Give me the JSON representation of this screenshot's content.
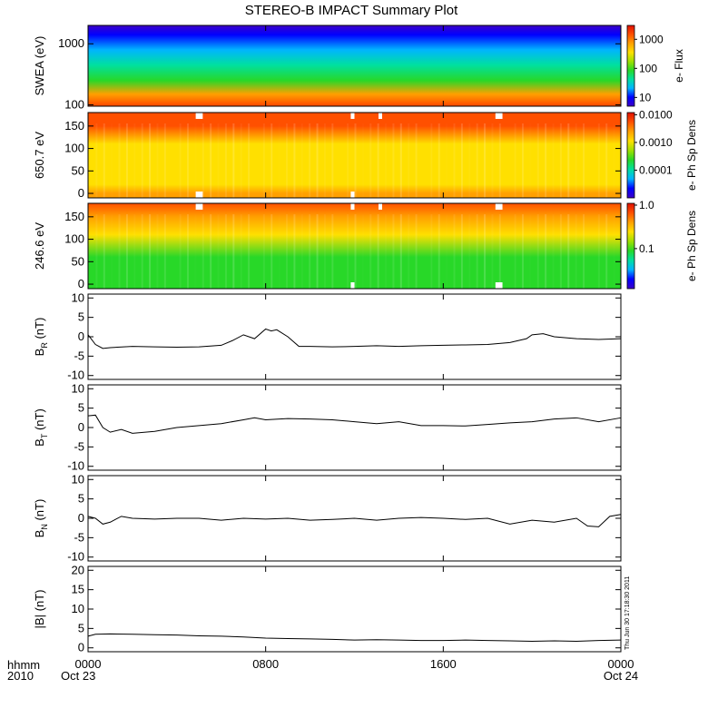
{
  "title": "STEREO-B IMPACT Summary Plot",
  "footer": {
    "unit_label": "hhmm",
    "year": "2010",
    "start_date": "Oct 23",
    "end_date": "Oct 24"
  },
  "timestamp": "Thu Jun 30 17:18:30 2011",
  "colors": {
    "trace": "#000000",
    "gap": "#ffffff",
    "spectrum": [
      "#3c00c8",
      "#0000ff",
      "#00b4ff",
      "#00e0a0",
      "#28d828",
      "#a0e000",
      "#ffe000",
      "#ffa000",
      "#ff5000",
      "#e01000"
    ]
  },
  "chart_data": [
    {
      "type": "heatmap",
      "name": "swea_flux",
      "ylabel": "SWEA (eV)",
      "yscale": "log",
      "ylim": [
        95,
        2000
      ],
      "yticks": [
        {
          "value": 100,
          "label": "100"
        },
        {
          "value": 1000,
          "label": "1000"
        }
      ],
      "colorbar": {
        "title": "e- Flux",
        "scale": "log",
        "range": [
          5,
          3000
        ],
        "ticks": [
          {
            "value": 10,
            "label": "10"
          },
          {
            "value": 100,
            "label": "100"
          },
          {
            "value": 1000,
            "label": "1000"
          }
        ]
      },
      "energy_profile": [
        {
          "energy": 100,
          "flux": 2000
        },
        {
          "energy": 150,
          "flux": 600
        },
        {
          "energy": 250,
          "flux": 120
        },
        {
          "energy": 450,
          "flux": 45
        },
        {
          "energy": 800,
          "flux": 20
        },
        {
          "energy": 1400,
          "flux": 8
        },
        {
          "energy": 2000,
          "flux": 5
        }
      ]
    },
    {
      "type": "heatmap",
      "name": "pad_650",
      "ylabel": "650.7 eV",
      "ylim": [
        -10,
        180
      ],
      "yticks": [
        0,
        50,
        100,
        150
      ],
      "colorbar": {
        "title": "e- Ph Sp Dens",
        "scale": "log",
        "range": [
          1e-05,
          0.012
        ],
        "ticks": [
          {
            "value": 0.0001,
            "label": "0.0001"
          },
          {
            "value": 0.001,
            "label": "0.0010"
          },
          {
            "value": 0.01,
            "label": "0.0100"
          }
        ]
      },
      "pitch_angle_profile": [
        {
          "pitch_angle": 180,
          "density": 0.008
        },
        {
          "pitch_angle": 150,
          "density": 0.0045
        },
        {
          "pitch_angle": 110,
          "density": 0.0015
        },
        {
          "pitch_angle": 60,
          "density": 0.0011
        },
        {
          "pitch_angle": 20,
          "density": 0.0015
        },
        {
          "pitch_angle": 0,
          "density": 0.002
        }
      ],
      "data_gaps": [
        {
          "start": "0451",
          "end": "0510",
          "at": "top"
        },
        {
          "start": "1150",
          "end": "1200",
          "at": "top"
        },
        {
          "start": "1305",
          "end": "1312",
          "at": "top"
        },
        {
          "start": "1821",
          "end": "1840",
          "at": "top"
        },
        {
          "start": "0451",
          "end": "0510",
          "at": "bottom"
        },
        {
          "start": "1150",
          "end": "1200",
          "at": "bottom"
        }
      ]
    },
    {
      "type": "heatmap",
      "name": "pad_246",
      "ylabel": "246.6 eV",
      "ylim": [
        -10,
        180
      ],
      "yticks": [
        0,
        50,
        100,
        150
      ],
      "colorbar": {
        "title": "e- Ph Sp Dens",
        "scale": "log",
        "range": [
          0.012,
          1.1
        ],
        "ticks": [
          {
            "value": 0.1,
            "label": "0.1"
          },
          {
            "value": 1.0,
            "label": "1.0"
          }
        ]
      },
      "pitch_angle_profile": [
        {
          "pitch_angle": 180,
          "density": 0.7
        },
        {
          "pitch_angle": 150,
          "density": 0.4
        },
        {
          "pitch_angle": 110,
          "density": 0.2
        },
        {
          "pitch_angle": 60,
          "density": 0.1
        },
        {
          "pitch_angle": 20,
          "density": 0.08
        },
        {
          "pitch_angle": 0,
          "density": 0.09
        }
      ],
      "data_gaps": [
        {
          "start": "0451",
          "end": "0510",
          "at": "top"
        },
        {
          "start": "1150",
          "end": "1200",
          "at": "top"
        },
        {
          "start": "1305",
          "end": "1312",
          "at": "top"
        },
        {
          "start": "1821",
          "end": "1840",
          "at": "top"
        },
        {
          "start": "1150",
          "end": "1200",
          "at": "bottom"
        },
        {
          "start": "1821",
          "end": "1840",
          "at": "bottom"
        }
      ]
    },
    {
      "type": "line",
      "name": "br",
      "ylabel_main": "B",
      "ylabel_sub": "R",
      "ylabel_unit": "(nT)",
      "ylim": [
        -11,
        11
      ],
      "yticks": [
        -10,
        -5,
        0,
        5,
        10
      ],
      "x": [
        "0000",
        "0020",
        "0040",
        "0100",
        "0200",
        "0300",
        "0400",
        "0500",
        "0600",
        "0630",
        "0700",
        "0730",
        "0800",
        "0815",
        "0830",
        "0900",
        "0930",
        "1000",
        "1100",
        "1200",
        "1300",
        "1400",
        "1500",
        "1600",
        "1700",
        "1800",
        "1900",
        "1945",
        "2000",
        "2030",
        "2100",
        "2200",
        "2300",
        "2400"
      ],
      "values": [
        0.5,
        -2,
        -3,
        -2.8,
        -2.5,
        -2.6,
        -2.7,
        -2.6,
        -2.2,
        -1,
        0.5,
        -0.5,
        2,
        1.5,
        1.8,
        0,
        -2.5,
        -2.5,
        -2.6,
        -2.5,
        -2.3,
        -2.5,
        -2.3,
        -2.2,
        -2.1,
        -2.0,
        -1.5,
        -0.5,
        0.5,
        0.8,
        0,
        -0.5,
        -0.7,
        -0.5
      ]
    },
    {
      "type": "line",
      "name": "bt",
      "ylabel_main": "B",
      "ylabel_sub": "T",
      "ylabel_unit": "(nT)",
      "ylim": [
        -11,
        11
      ],
      "yticks": [
        -10,
        -5,
        0,
        5,
        10
      ],
      "x": [
        "0000",
        "0020",
        "0040",
        "0100",
        "0130",
        "0200",
        "0300",
        "0400",
        "0500",
        "0600",
        "0700",
        "0730",
        "0800",
        "0900",
        "1000",
        "1100",
        "1200",
        "1300",
        "1400",
        "1500",
        "1600",
        "1700",
        "1800",
        "1900",
        "2000",
        "2100",
        "2200",
        "2300",
        "2400"
      ],
      "values": [
        3,
        3.2,
        0,
        -1.2,
        -0.5,
        -1.5,
        -1,
        0,
        0.5,
        1,
        2,
        2.5,
        2,
        2.3,
        2.2,
        2,
        1.5,
        1,
        1.5,
        0.5,
        0.5,
        0.4,
        0.8,
        1.2,
        1.5,
        2.2,
        2.5,
        1.5,
        2.5
      ]
    },
    {
      "type": "line",
      "name": "bn",
      "ylabel_main": "B",
      "ylabel_sub": "N",
      "ylabel_unit": "(nT)",
      "ylim": [
        -11,
        11
      ],
      "yticks": [
        -10,
        -5,
        0,
        5,
        10
      ],
      "x": [
        "0000",
        "0020",
        "0040",
        "0100",
        "0130",
        "0200",
        "0300",
        "0400",
        "0500",
        "0600",
        "0700",
        "0800",
        "0900",
        "1000",
        "1100",
        "1200",
        "1300",
        "1400",
        "1500",
        "1600",
        "1700",
        "1800",
        "1900",
        "2000",
        "2100",
        "2200",
        "2230",
        "2300",
        "2330",
        "2400"
      ],
      "values": [
        0.5,
        0,
        -1.5,
        -1,
        0.5,
        0,
        -0.2,
        0,
        0,
        -0.5,
        0,
        -0.2,
        0,
        -0.5,
        -0.3,
        0,
        -0.5,
        0,
        0.2,
        0,
        -0.3,
        0,
        -1.5,
        -0.5,
        -1,
        0,
        -2,
        -2.2,
        0.5,
        1
      ]
    },
    {
      "type": "line",
      "name": "btot",
      "ylabel_main": "|B|",
      "ylabel_sub": "",
      "ylabel_unit": "(nT)",
      "ylim": [
        -1,
        21
      ],
      "yticks": [
        0,
        5,
        10,
        15,
        20
      ],
      "x": [
        "0000",
        "0020",
        "0100",
        "0200",
        "0300",
        "0400",
        "0500",
        "0600",
        "0700",
        "0800",
        "0900",
        "1000",
        "1100",
        "1200",
        "1300",
        "1400",
        "1500",
        "1600",
        "1700",
        "1800",
        "1900",
        "2000",
        "2100",
        "2200",
        "2300",
        "2400"
      ],
      "values": [
        3.0,
        3.5,
        3.6,
        3.5,
        3.4,
        3.3,
        3.1,
        3.0,
        2.8,
        2.5,
        2.4,
        2.3,
        2.2,
        2.0,
        2.1,
        2.0,
        1.9,
        1.9,
        2.0,
        1.9,
        1.8,
        1.7,
        1.8,
        1.7,
        1.9,
        2.0
      ]
    }
  ],
  "x_axis": {
    "type": "time",
    "range": [
      "0000",
      "2400"
    ],
    "tick_labels": [
      {
        "value": "0000",
        "label": "0000"
      },
      {
        "value": "0800",
        "label": "0800"
      },
      {
        "value": "1600",
        "label": "1600"
      },
      {
        "value": "2400",
        "label": "0000"
      }
    ]
  }
}
